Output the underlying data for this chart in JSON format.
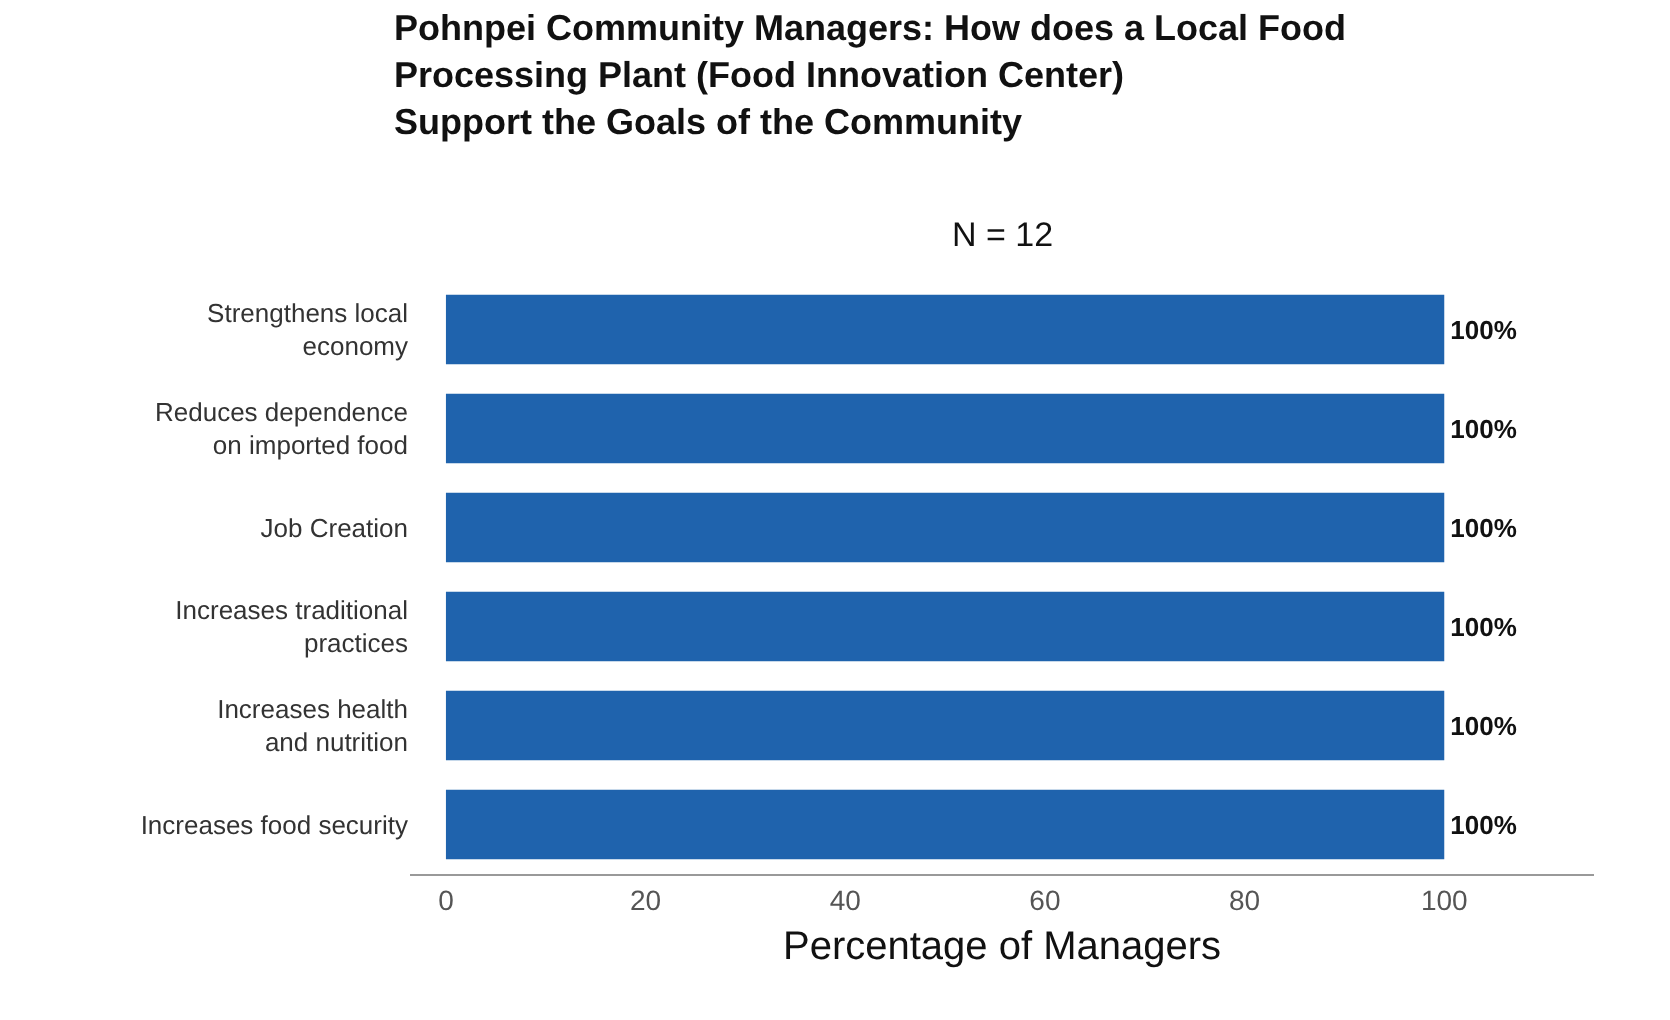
{
  "chart_data": {
    "type": "bar",
    "orientation": "horizontal",
    "title": "Pohnpei Community Managers: How does a Local Food\nProcessing Plant (Food Innovation Center)\nSupport the Goals of the Community",
    "subtitle": "N = 12",
    "xlabel": "Percentage of Managers",
    "categories": [
      "Strengthens local\neconomy",
      "Reduces dependence\non imported food",
      "Job Creation",
      "Increases traditional\npractices",
      "Increases health\nand nutrition",
      "Increases food security"
    ],
    "values": [
      100,
      100,
      100,
      100,
      100,
      100
    ],
    "value_labels": [
      "100%",
      "100%",
      "100%",
      "100%",
      "100%",
      "100%"
    ],
    "color": "#1f63ad",
    "xlim": [
      -3.6,
      115
    ],
    "xticks": [
      0,
      20,
      40,
      60,
      80,
      100
    ],
    "grid": false,
    "legend": false
  }
}
